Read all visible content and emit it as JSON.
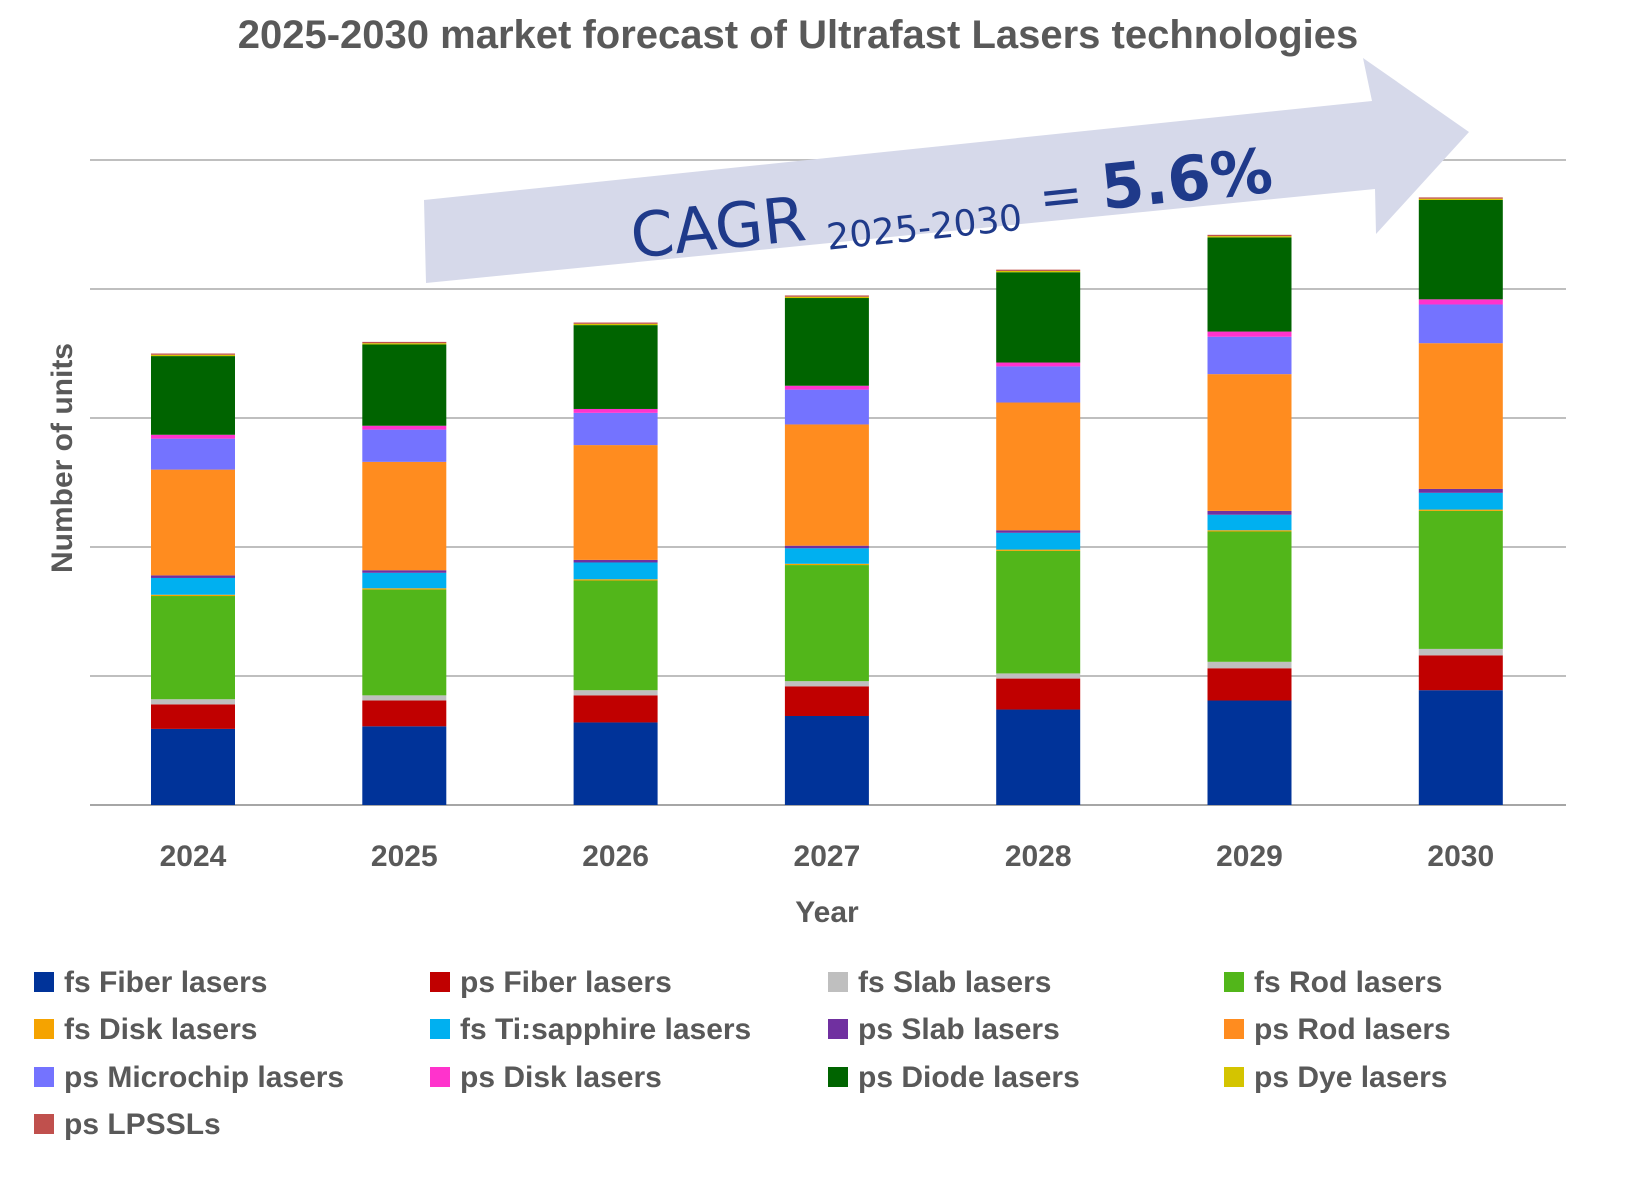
{
  "chart_data": {
    "type": "bar",
    "stacked": true,
    "title": "2025-2030 market forecast of Ultrafast Lasers technologies",
    "xlabel": "Year",
    "ylabel": "Number of units",
    "categories": [
      "2024",
      "2025",
      "2026",
      "2027",
      "2028",
      "2029",
      "2030"
    ],
    "ylim": [
      0,
      5
    ],
    "y_tick_labels_shown": false,
    "grid": true,
    "legend_position": "bottom",
    "annotation": {
      "cagr_label": "CAGR",
      "cagr_period": "2025-2030",
      "cagr_equals": "=",
      "cagr_value": "5.6%",
      "arrow_color": "#d6d9ea"
    },
    "series": [
      {
        "name": "fs Fiber lasers",
        "color": "#003399",
        "values": [
          0.59,
          0.61,
          0.64,
          0.69,
          0.74,
          0.81,
          0.89
        ]
      },
      {
        "name": "ps Fiber lasers",
        "color": "#c00000",
        "values": [
          0.19,
          0.2,
          0.21,
          0.23,
          0.24,
          0.25,
          0.27
        ]
      },
      {
        "name": "fs Slab lasers",
        "color": "#bfbfbf",
        "values": [
          0.04,
          0.04,
          0.04,
          0.04,
          0.04,
          0.05,
          0.05
        ]
      },
      {
        "name": "fs Rod lasers",
        "color": "#52b61a",
        "values": [
          0.8,
          0.82,
          0.85,
          0.9,
          0.95,
          1.01,
          1.07
        ]
      },
      {
        "name": "fs Disk lasers",
        "color": "#f5a300",
        "values": [
          0.01,
          0.01,
          0.01,
          0.01,
          0.01,
          0.01,
          0.01
        ]
      },
      {
        "name": "fs Ti:sapphire lasers",
        "color": "#00b0f0",
        "values": [
          0.13,
          0.12,
          0.13,
          0.12,
          0.13,
          0.12,
          0.13
        ]
      },
      {
        "name": "ps Slab lasers",
        "color": "#7030a0",
        "values": [
          0.02,
          0.02,
          0.02,
          0.02,
          0.02,
          0.03,
          0.03
        ]
      },
      {
        "name": "ps Rod lasers",
        "color": "#ff8c1f",
        "values": [
          0.82,
          0.84,
          0.89,
          0.94,
          0.99,
          1.06,
          1.13
        ]
      },
      {
        "name": "ps Microchip lasers",
        "color": "#7473ff",
        "values": [
          0.24,
          0.25,
          0.25,
          0.27,
          0.28,
          0.29,
          0.3
        ]
      },
      {
        "name": "ps Disk lasers",
        "color": "#ff33cc",
        "values": [
          0.03,
          0.03,
          0.03,
          0.03,
          0.03,
          0.04,
          0.04
        ]
      },
      {
        "name": "ps Diode lasers",
        "color": "#006400",
        "values": [
          0.61,
          0.63,
          0.65,
          0.68,
          0.7,
          0.73,
          0.77
        ]
      },
      {
        "name": "ps Dye lasers",
        "color": "#d4c400",
        "values": [
          0.01,
          0.01,
          0.01,
          0.01,
          0.01,
          0.01,
          0.01
        ]
      },
      {
        "name": "ps LPSSLs",
        "color": "#c0504d",
        "values": [
          0.01,
          0.01,
          0.01,
          0.01,
          0.01,
          0.01,
          0.01
        ]
      }
    ]
  }
}
